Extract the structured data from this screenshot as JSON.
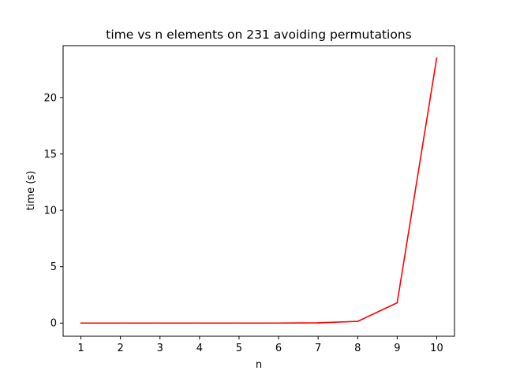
{
  "chart_data": {
    "type": "line",
    "title": "time vs n elements on 231 avoiding permutations",
    "xlabel": "n",
    "ylabel": "time (s)",
    "x": [
      1,
      2,
      3,
      4,
      5,
      6,
      7,
      8,
      9,
      10
    ],
    "xlim": [
      0.55,
      10.45
    ],
    "ylim": [
      -1.17,
      24.6
    ],
    "xticks": [
      1,
      2,
      3,
      4,
      5,
      6,
      7,
      8,
      9,
      10
    ],
    "yticks": [
      0,
      5,
      10,
      15,
      20
    ],
    "grid": false,
    "series": [
      {
        "color": "#ff0000",
        "values": [
          0.0,
          0.0,
          0.0,
          0.0,
          0.0,
          0.0,
          0.02,
          0.15,
          1.8,
          23.5
        ]
      }
    ]
  }
}
